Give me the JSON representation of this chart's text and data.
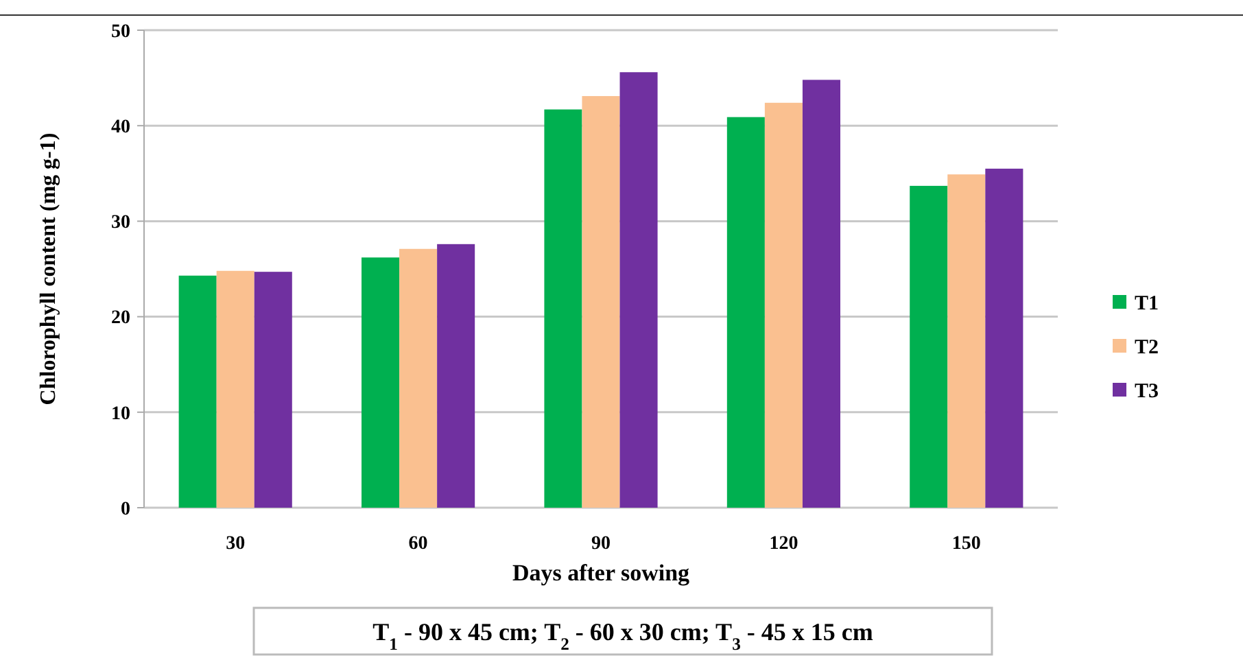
{
  "chart_data": {
    "type": "bar",
    "xlabel": "Days after sowing",
    "ylabel": "Chlorophyll content (mg g-1)",
    "categories": [
      "30",
      "60",
      "90",
      "120",
      "150"
    ],
    "series": [
      {
        "name": "T1",
        "color": "#00b050",
        "values": [
          24.3,
          26.2,
          41.7,
          40.9,
          33.7
        ]
      },
      {
        "name": "T2",
        "color": "#fac090",
        "values": [
          24.8,
          27.1,
          43.1,
          42.4,
          34.9
        ]
      },
      {
        "name": "T3",
        "color": "#7030a0",
        "values": [
          24.7,
          27.6,
          45.6,
          44.8,
          35.5
        ]
      }
    ],
    "ylim": [
      0,
      50
    ],
    "yticks": [
      0,
      10,
      20,
      30,
      40,
      50
    ],
    "grid": "y",
    "legend": "right",
    "annotations": [
      "T$_{1}$ - 90 x 45 cm;  T$_{2}$ - 60 x 30 cm; T$_{3}$ - 45 x 15 cm"
    ]
  }
}
